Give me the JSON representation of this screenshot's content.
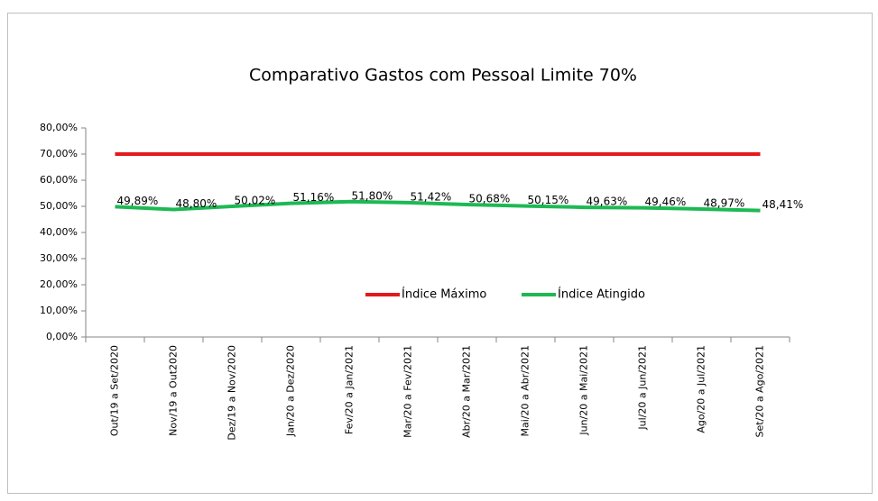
{
  "chart_data": {
    "type": "line",
    "title": "Comparativo Gastos com Pessoal Limite 70%",
    "categories": [
      "Out/19 a Set/2020",
      "Nov/19 a Out2020",
      "Dez/19 a Nov/2020",
      "Jan/20 a Dez/2020",
      "Fev/20 a Jan/2021",
      "Mar/20 a Fev/2021",
      "Abr/20 a Mar/2021",
      "Mai/20 a Abr/2021",
      "Jun/20 a Mai/2021",
      "Jul/20 a Jun/2021",
      "Ago/20 a Jul/2021",
      "Set/20 a Ago/2021"
    ],
    "series": [
      {
        "name": "Índice Máximo",
        "color": "#e31a1c",
        "values": [
          70,
          70,
          70,
          70,
          70,
          70,
          70,
          70,
          70,
          70,
          70,
          70
        ]
      },
      {
        "name": "Índice Atingido",
        "color": "#1db954",
        "values": [
          49.89,
          48.8,
          50.02,
          51.16,
          51.8,
          51.42,
          50.68,
          50.15,
          49.63,
          49.46,
          48.97,
          48.41
        ],
        "value_labels": [
          "49,89%",
          "48,80%",
          "50,02%",
          "51,16%",
          "51,80%",
          "51,42%",
          "50,68%",
          "50,15%",
          "49,63%",
          "49,46%",
          "48,97%",
          "48,41%"
        ]
      }
    ],
    "ylim": [
      0,
      80
    ],
    "yticks": [
      {
        "value": 0,
        "label": "0,00%"
      },
      {
        "value": 10,
        "label": "10,00%"
      },
      {
        "value": 20,
        "label": "20,00%"
      },
      {
        "value": 30,
        "label": "30,00%"
      },
      {
        "value": 40,
        "label": "40,00%"
      },
      {
        "value": 50,
        "label": "50,00%"
      },
      {
        "value": 60,
        "label": "60,00%"
      },
      {
        "value": 70,
        "label": "70,00%"
      },
      {
        "value": 80,
        "label": "80,00%"
      }
    ],
    "grid": false,
    "legend": "center"
  }
}
